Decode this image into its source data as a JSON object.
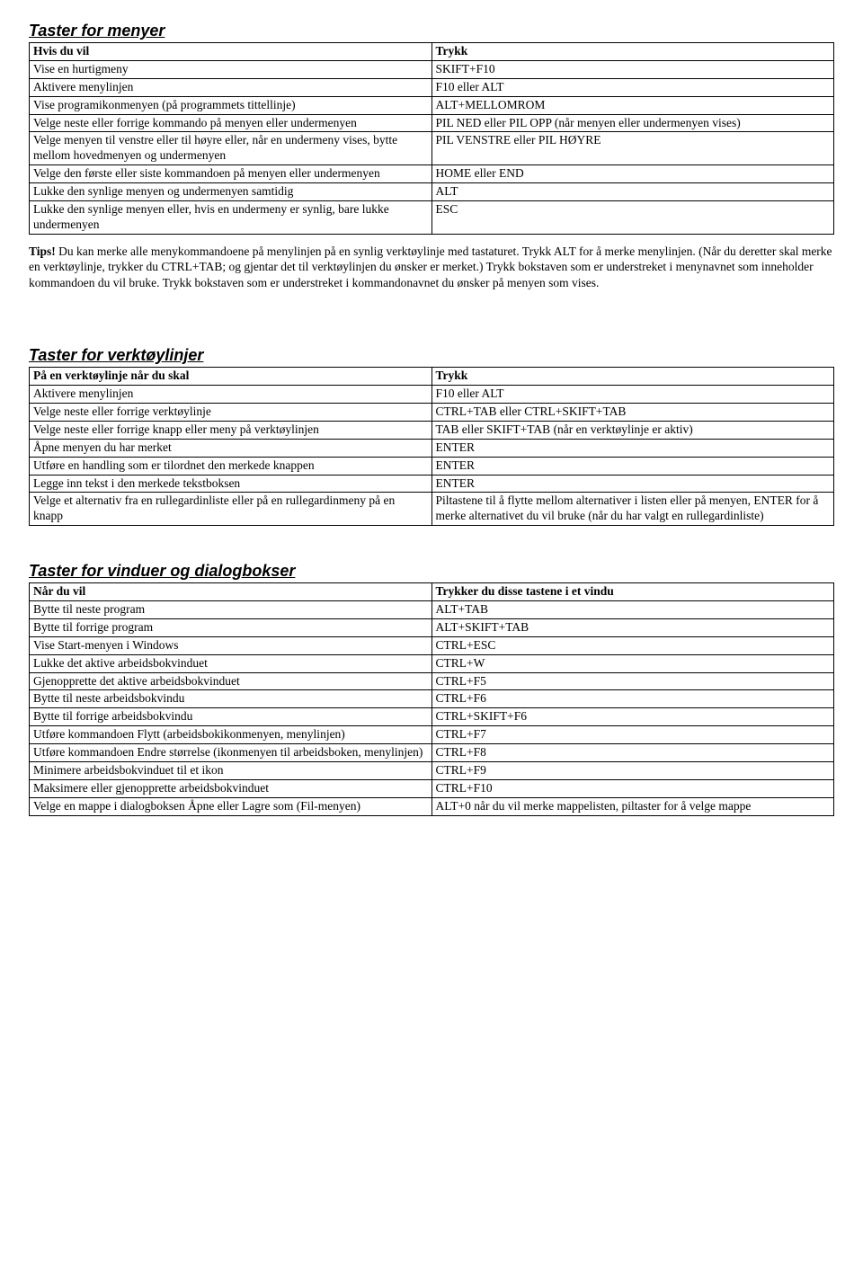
{
  "section1": {
    "title": "Taster for menyer",
    "header": [
      "Hvis du vil",
      "Trykk"
    ],
    "rows": [
      [
        "Vise en hurtigmeny",
        "SKIFT+F10"
      ],
      [
        "Aktivere menylinjen",
        "F10 eller ALT"
      ],
      [
        "Vise programikonmenyen (på programmets tittellinje)",
        "ALT+MELLOMROM"
      ],
      [
        "Velge neste eller forrige kommando på menyen eller undermenyen",
        "PIL NED eller PIL OPP (når menyen eller undermenyen vises)"
      ],
      [
        "Velge menyen til venstre eller til høyre eller, når en undermeny vises, bytte mellom hovedmenyen og undermenyen",
        "PIL VENSTRE eller PIL HØYRE"
      ],
      [
        "Velge den første eller siste kommandoen på menyen eller undermenyen",
        "HOME eller END"
      ],
      [
        "Lukke den synlige menyen og undermenyen samtidig",
        "ALT"
      ],
      [
        "Lukke den synlige menyen eller, hvis en undermeny er synlig, bare lukke undermenyen",
        "ESC"
      ]
    ]
  },
  "tip_label": "Tips!",
  "tip_text": "   Du kan merke alle menykommandoene på menylinjen på en synlig verktøylinje med tastaturet. Trykk ALT for å merke menylinjen. (Når du deretter skal merke en verktøylinje, trykker du CTRL+TAB; og gjentar det til verktøylinjen du ønsker er merket.) Trykk bokstaven som er understreket i menynavnet som inneholder kommandoen du vil bruke. Trykk bokstaven som er understreket i kommandonavnet du ønsker på menyen som vises.",
  "section2": {
    "title": "Taster for verktøylinjer",
    "header": [
      "På en verktøylinje når du skal",
      "Trykk"
    ],
    "rows": [
      [
        "Aktivere menylinjen",
        "F10 eller ALT"
      ],
      [
        "Velge neste eller forrige verktøylinje",
        "CTRL+TAB eller CTRL+SKIFT+TAB"
      ],
      [
        "Velge neste eller forrige knapp eller meny på verktøylinjen",
        "TAB eller SKIFT+TAB (når en verktøylinje er aktiv)"
      ],
      [
        "Åpne menyen du har merket",
        "ENTER"
      ],
      [
        "Utføre en handling som er tilordnet den merkede knappen",
        "ENTER"
      ],
      [
        "Legge inn tekst i den merkede tekstboksen",
        "ENTER"
      ],
      [
        "Velge et alternativ fra en rullegardinliste eller på en rullegardinmeny på en knapp",
        "Piltastene til å flytte mellom alternativer i listen eller på menyen, ENTER for å merke alternativet du vil bruke (når du har valgt en rullegardinliste)"
      ]
    ]
  },
  "section3": {
    "title": "Taster for vinduer og dialogbokser",
    "header": [
      "Når du vil",
      "Trykker du disse tastene i et vindu"
    ],
    "rows": [
      [
        "Bytte til neste program",
        "ALT+TAB"
      ],
      [
        "Bytte til forrige program",
        "ALT+SKIFT+TAB"
      ],
      [
        "Vise Start-menyen i Windows",
        "CTRL+ESC"
      ],
      [
        "Lukke det aktive arbeidsbokvinduet",
        "CTRL+W"
      ],
      [
        "Gjenopprette det aktive arbeidsbokvinduet",
        "CTRL+F5"
      ],
      [
        "Bytte til neste arbeidsbokvindu",
        "CTRL+F6"
      ],
      [
        "Bytte til forrige arbeidsbokvindu",
        "CTRL+SKIFT+F6"
      ],
      [
        "Utføre kommandoen Flytt (arbeidsbokikonmenyen, menylinjen)",
        "CTRL+F7"
      ],
      [
        "Utføre kommandoen Endre størrelse (ikonmenyen til arbeidsboken, menylinjen)",
        "CTRL+F8"
      ],
      [
        "Minimere arbeidsbokvinduet til et ikon",
        "CTRL+F9"
      ],
      [
        "Maksimere eller gjenopprette arbeidsbokvinduet",
        "CTRL+F10"
      ],
      [
        "Velge en mappe i dialogboksen Åpne eller Lagre som (Fil-menyen)",
        "ALT+0 når du vil merke mappelisten, piltaster for å velge mappe"
      ]
    ]
  }
}
